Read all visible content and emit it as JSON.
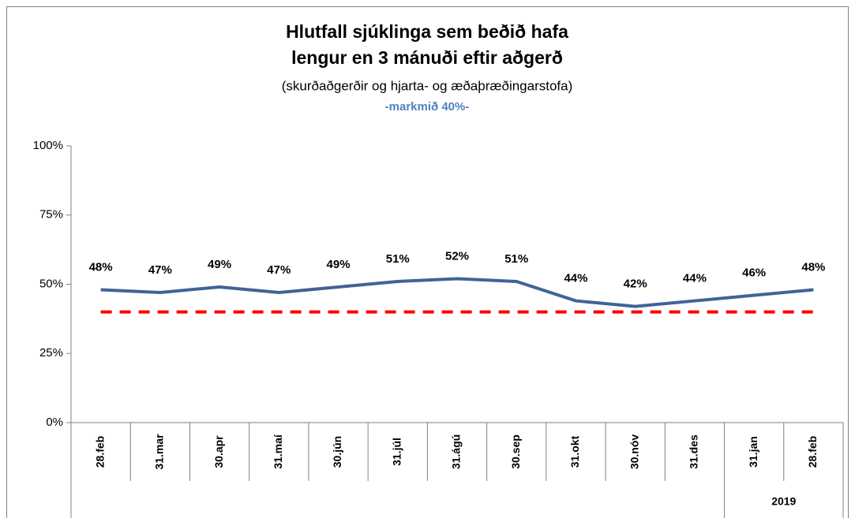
{
  "chart_data": {
    "type": "line",
    "title": [
      "Hlutfall sjúklinga sem beðið hafa",
      "lengur en 3 mánuði eftir aðgerð"
    ],
    "subtitle": "(skurðaðgerðir og hjarta- og æðaþræðingarstofa)",
    "annotation": "-markmið 40%-",
    "annotation_color": "#4f81bd",
    "categories": [
      "28.feb",
      "31.mar",
      "30.apr",
      "31.maí",
      "30.jún",
      "31.júl",
      "31.ágú",
      "30.sep",
      "31.okt",
      "30.nóv",
      "31.des",
      "31.jan",
      "28.feb"
    ],
    "x_groups": [
      {
        "label": "2019",
        "start": 11,
        "end": 12
      }
    ],
    "series": [
      {
        "color": "#3f6497",
        "values": [
          48,
          47,
          49,
          47,
          49,
          51,
          52,
          51,
          44,
          42,
          44,
          46,
          48
        ],
        "value_labels": [
          "48%",
          "47%",
          "49%",
          "47%",
          "49%",
          "51%",
          "52%",
          "51%",
          "44%",
          "42%",
          "44%",
          "46%",
          "48%"
        ]
      }
    ],
    "target": {
      "value": 40,
      "color": "#ff0000"
    },
    "ylim": [
      0,
      100
    ],
    "yticks": [
      {
        "value": 0,
        "label": "0%"
      },
      {
        "value": 25,
        "label": "25%"
      },
      {
        "value": 50,
        "label": "50%"
      },
      {
        "value": 75,
        "label": "75%"
      },
      {
        "value": 100,
        "label": "100%"
      }
    ],
    "grid": false
  }
}
